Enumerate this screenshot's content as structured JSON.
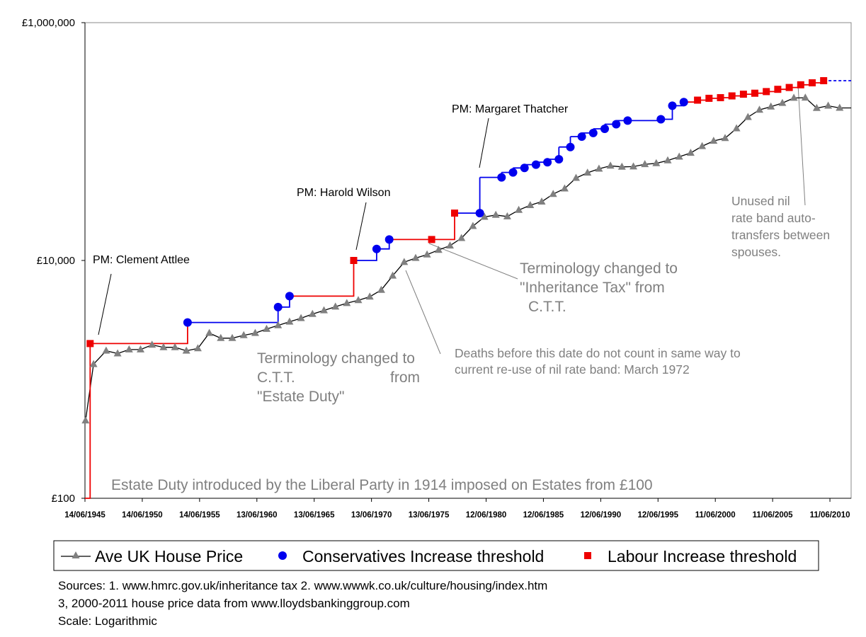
{
  "chart_data": {
    "type": "line",
    "title": "",
    "xlabel": "",
    "ylabel": "",
    "y_scale": "log",
    "ylim": [
      100,
      1000000
    ],
    "xlim": [
      1945.45,
      2012.3
    ],
    "y_ticks": [
      {
        "value": 100,
        "label": "£100"
      },
      {
        "value": 10000,
        "label": "£10,000"
      },
      {
        "value": 1000000,
        "label": "£1,000,000"
      }
    ],
    "x_ticks": [
      {
        "value": 1945.45,
        "label": "14/06/1945"
      },
      {
        "value": 1950.45,
        "label": "14/06/1950"
      },
      {
        "value": 1955.45,
        "label": "14/06/1955"
      },
      {
        "value": 1960.45,
        "label": "13/06/1960"
      },
      {
        "value": 1965.45,
        "label": "13/06/1965"
      },
      {
        "value": 1970.45,
        "label": "13/06/1970"
      },
      {
        "value": 1975.45,
        "label": "13/06/1975"
      },
      {
        "value": 1980.45,
        "label": "12/06/1980"
      },
      {
        "value": 1985.45,
        "label": "12/06/1985"
      },
      {
        "value": 1990.45,
        "label": "12/06/1990"
      },
      {
        "value": 1995.45,
        "label": "12/06/1995"
      },
      {
        "value": 2000.45,
        "label": "11/06/2000"
      },
      {
        "value": 2005.45,
        "label": "11/06/2005"
      },
      {
        "value": 2010.45,
        "label": "11/06/2010"
      }
    ],
    "grid": false,
    "legend_position": "bottom",
    "legend": [
      {
        "label": "Ave UK House Price",
        "marker": "triangle",
        "color": "#808080"
      },
      {
        "label": "Conservatives Increase threshold",
        "marker": "circle",
        "color": "#0000ee"
      },
      {
        "label": "Labour Increase threshold",
        "marker": "square",
        "color": "#ee0000"
      }
    ],
    "colors": {
      "house_price": "#808080",
      "conservative": "#0000ee",
      "labour": "#ee0000",
      "future": "#0000ee"
    },
    "series": [
      {
        "key": "house_price",
        "points": [
          [
            1945.5,
            450
          ],
          [
            1946.2,
            1340
          ],
          [
            1947.3,
            1740
          ],
          [
            1948.3,
            1650
          ],
          [
            1949.3,
            1780
          ],
          [
            1950.3,
            1780
          ],
          [
            1951.3,
            1950
          ],
          [
            1952.3,
            1860
          ],
          [
            1953.3,
            1860
          ],
          [
            1954.3,
            1740
          ],
          [
            1955.3,
            1820
          ],
          [
            1956.3,
            2450
          ],
          [
            1957.3,
            2220
          ],
          [
            1958.3,
            2220
          ],
          [
            1959.3,
            2350
          ],
          [
            1960.3,
            2450
          ],
          [
            1961.3,
            2650
          ],
          [
            1962.3,
            2840
          ],
          [
            1963.3,
            3050
          ],
          [
            1964.3,
            3270
          ],
          [
            1965.3,
            3540
          ],
          [
            1966.3,
            3800
          ],
          [
            1967.3,
            4080
          ],
          [
            1968.3,
            4370
          ],
          [
            1969.3,
            4620
          ],
          [
            1970.3,
            4950
          ],
          [
            1971.3,
            5650
          ],
          [
            1972.3,
            7440
          ],
          [
            1973.3,
            9670
          ],
          [
            1974.3,
            10470
          ],
          [
            1975.3,
            11200
          ],
          [
            1976.3,
            12250
          ],
          [
            1977.3,
            13320
          ],
          [
            1978.3,
            15390
          ],
          [
            1979.3,
            19430
          ],
          [
            1980.3,
            23220
          ],
          [
            1981.3,
            24120
          ],
          [
            1982.3,
            23410
          ],
          [
            1983.3,
            26520
          ],
          [
            1984.3,
            29120
          ],
          [
            1985.3,
            31180
          ],
          [
            1986.3,
            36190
          ],
          [
            1987.3,
            40200
          ],
          [
            1988.3,
            49390
          ],
          [
            1989.3,
            54630
          ],
          [
            1990.3,
            59010
          ],
          [
            1991.3,
            62500
          ],
          [
            1992.3,
            61230
          ],
          [
            1993.3,
            61600
          ],
          [
            1994.3,
            64410
          ],
          [
            1995.3,
            65530
          ],
          [
            1996.3,
            69280
          ],
          [
            1997.3,
            74520
          ],
          [
            1998.3,
            80200
          ],
          [
            1999.3,
            91290
          ],
          [
            2000.3,
            101310
          ],
          [
            2001.3,
            106670
          ],
          [
            2002.3,
            128860
          ],
          [
            2003.3,
            160470
          ],
          [
            2004.3,
            184770
          ],
          [
            2005.3,
            196280
          ],
          [
            2006.3,
            210720
          ],
          [
            2007.3,
            232720
          ],
          [
            2008.3,
            233710
          ],
          [
            2009.3,
            191000
          ],
          [
            2010.3,
            199700
          ],
          [
            2011.3,
            191640
          ],
          [
            2012.3,
            191640
          ]
        ]
      },
      {
        "key": "conservative",
        "points": [
          [
            1954.4,
            3010
          ],
          [
            1962.3,
            4050
          ],
          [
            1963.3,
            5010
          ],
          [
            1970.9,
            12500
          ],
          [
            1972.0,
            15000
          ],
          [
            1979.9,
            25000
          ],
          [
            1981.8,
            50000
          ],
          [
            1982.8,
            55000
          ],
          [
            1983.8,
            60000
          ],
          [
            1984.8,
            64000
          ],
          [
            1985.8,
            67000
          ],
          [
            1986.8,
            71000
          ],
          [
            1987.8,
            90000
          ],
          [
            1988.8,
            110000
          ],
          [
            1989.8,
            118000
          ],
          [
            1990.8,
            128000
          ],
          [
            1991.8,
            140000
          ],
          [
            1992.8,
            150000
          ],
          [
            1995.7,
            154000
          ],
          [
            1996.7,
            200000
          ],
          [
            1997.7,
            215000
          ]
        ]
      },
      {
        "key": "labour",
        "points": [
          [
            1945.9,
            2000
          ],
          [
            1968.9,
            10000
          ],
          [
            1975.7,
            15000
          ],
          [
            1977.7,
            25000
          ],
          [
            1998.9,
            223000
          ],
          [
            1999.9,
            231000
          ],
          [
            2000.9,
            234000
          ],
          [
            2001.9,
            242000
          ],
          [
            2002.9,
            250000
          ],
          [
            2003.9,
            255000
          ],
          [
            2004.9,
            263000
          ],
          [
            2005.9,
            275000
          ],
          [
            2006.9,
            285000
          ],
          [
            2007.9,
            300000
          ],
          [
            2008.9,
            312000
          ],
          [
            2009.9,
            325000
          ]
        ]
      }
    ],
    "step_line": [
      {
        "x": 1945.45,
        "y": 100,
        "color": "#ee0000"
      },
      {
        "x": 1945.9,
        "y": 2000,
        "color": "#ee0000"
      },
      {
        "x": 1954.4,
        "y": 3010,
        "color": "#0000ee"
      },
      {
        "x": 1962.3,
        "y": 4050,
        "color": "#0000ee"
      },
      {
        "x": 1963.3,
        "y": 5010,
        "color": "#ee0000"
      },
      {
        "x": 1968.9,
        "y": 10000,
        "color": "#0000ee"
      },
      {
        "x": 1970.9,
        "y": 12500,
        "color": "#0000ee"
      },
      {
        "x": 1972.0,
        "y": 15000,
        "color": "#ee0000"
      },
      {
        "x": 1975.7,
        "y": 15000,
        "color": "#ee0000"
      },
      {
        "x": 1977.7,
        "y": 25000,
        "color": "#0000ee"
      },
      {
        "x": 1979.9,
        "y": 50000,
        "color": "#0000ee"
      },
      {
        "x": 1981.8,
        "y": 55000,
        "color": "#0000ee"
      },
      {
        "x": 1982.8,
        "y": 60000,
        "color": "#0000ee"
      },
      {
        "x": 1983.8,
        "y": 64000,
        "color": "#0000ee"
      },
      {
        "x": 1984.8,
        "y": 67000,
        "color": "#0000ee"
      },
      {
        "x": 1985.8,
        "y": 71000,
        "color": "#0000ee"
      },
      {
        "x": 1986.8,
        "y": 90000,
        "color": "#0000ee"
      },
      {
        "x": 1987.8,
        "y": 110000,
        "color": "#0000ee"
      },
      {
        "x": 1988.8,
        "y": 118000,
        "color": "#0000ee"
      },
      {
        "x": 1989.8,
        "y": 128000,
        "color": "#0000ee"
      },
      {
        "x": 1990.8,
        "y": 140000,
        "color": "#0000ee"
      },
      {
        "x": 1991.8,
        "y": 150000,
        "color": "#0000ee"
      },
      {
        "x": 1995.7,
        "y": 154000,
        "color": "#0000ee"
      },
      {
        "x": 1996.7,
        "y": 200000,
        "color": "#0000ee"
      },
      {
        "x": 1997.7,
        "y": 215000,
        "color": "#ee0000"
      },
      {
        "x": 1998.9,
        "y": 223000,
        "color": "#ee0000"
      },
      {
        "x": 1999.9,
        "y": 231000,
        "color": "#ee0000"
      },
      {
        "x": 2000.9,
        "y": 234000,
        "color": "#ee0000"
      },
      {
        "x": 2001.9,
        "y": 242000,
        "color": "#ee0000"
      },
      {
        "x": 2002.9,
        "y": 250000,
        "color": "#ee0000"
      },
      {
        "x": 2003.9,
        "y": 255000,
        "color": "#ee0000"
      },
      {
        "x": 2004.9,
        "y": 263000,
        "color": "#ee0000"
      },
      {
        "x": 2005.9,
        "y": 275000,
        "color": "#ee0000"
      },
      {
        "x": 2006.9,
        "y": 285000,
        "color": "#ee0000"
      },
      {
        "x": 2007.9,
        "y": 300000,
        "color": "#ee0000"
      },
      {
        "x": 2008.9,
        "y": 312000,
        "color": "#ee0000"
      },
      {
        "x": 2009.9,
        "y": 325000,
        "color": "#0000ee"
      }
    ],
    "future_line": {
      "from": [
        2009.9,
        325000
      ],
      "to": [
        2012.3,
        325000
      ]
    },
    "annotations": {
      "pm_attlee": "PM: Clement Attlee",
      "pm_wilson": "PM: Harold Wilson",
      "pm_thatcher": "PM: Margaret Thatcher",
      "ctt_1": "Terminology changed to",
      "ctt_2": "C.T.T.",
      "ctt_3": "from",
      "ctt_4": "\"Estate Duty\"",
      "iht_1": "Terminology changed to",
      "iht_2": "\"Inheritance Tax\" from",
      "iht_3": "C.T.T.",
      "deaths_1": "Deaths before this date do not count in same way to",
      "deaths_2": "current re-use of nil rate band: March 1972",
      "unused_1": "Unused nil",
      "unused_2": "rate band auto-",
      "unused_3": "transfers between",
      "unused_4": "spouses.",
      "estate_duty": "Estate Duty introduced by the Liberal Party in 1914 imposed on Estates from £100"
    }
  },
  "sources": {
    "line1": "Sources: 1. www.hmrc.gov.uk/inheritance tax  2. www.wwwk.co.uk/culture/housing/index.htm",
    "line2": "3, 2000-2011 house price data from www.lloydsbankinggroup.com",
    "line3": "Scale: Logarithmic"
  }
}
